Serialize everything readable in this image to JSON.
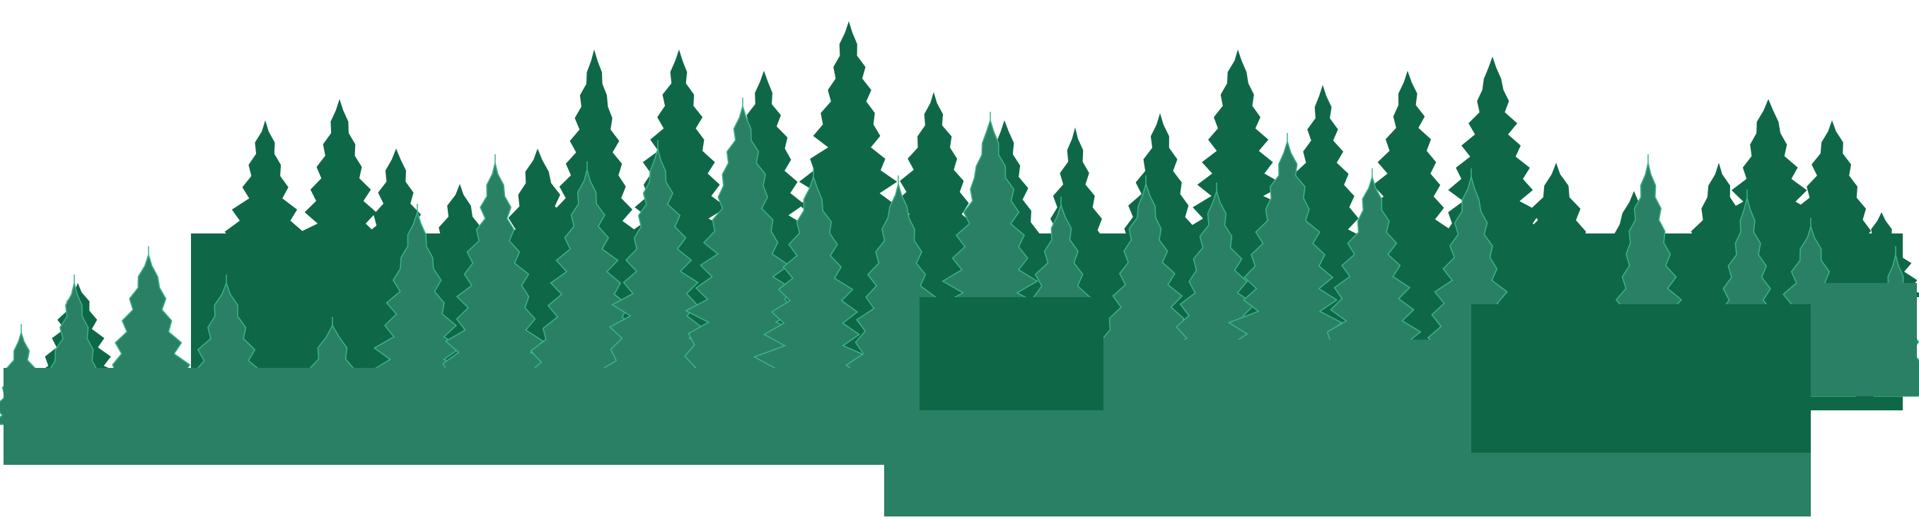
{
  "image": {
    "subject": "forest-silhouette",
    "background_color": "#ffffff",
    "colors": {
      "dark_tree": "#0e6847",
      "light_tree": "#2a8065",
      "outline": "#3bb486"
    }
  }
}
